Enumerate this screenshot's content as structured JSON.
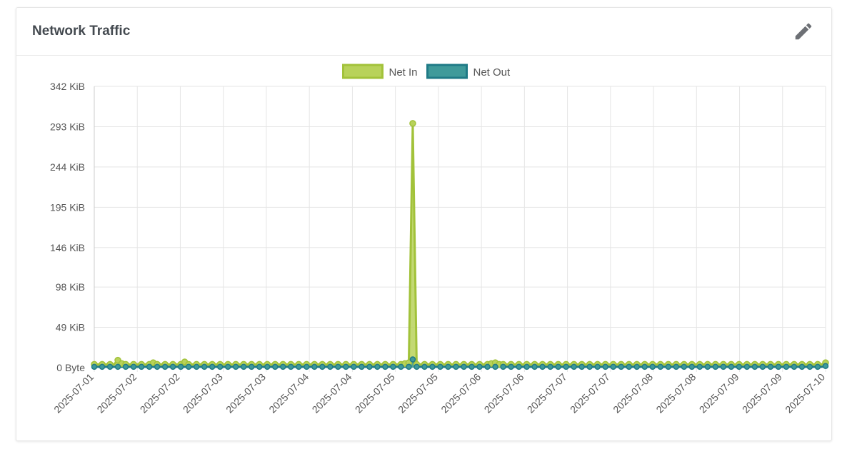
{
  "card": {
    "title": "Network Traffic",
    "edit_icon": "pencil-icon"
  },
  "colors": {
    "net_in_fill": "#b8d25a",
    "net_in_line": "#a2c23a",
    "net_out_fill": "#3f9a9a",
    "net_out_line": "#1f7a86",
    "grid": "#e5e5e5"
  },
  "chart_data": {
    "type": "area",
    "legend_position": "top-center",
    "grid": true,
    "y_unit": "KiB",
    "ylim": [
      0,
      342
    ],
    "y_ticks": [
      {
        "value": 0,
        "label": "0 Byte"
      },
      {
        "value": 49,
        "label": "49 KiB"
      },
      {
        "value": 98,
        "label": "98 KiB"
      },
      {
        "value": 146,
        "label": "146 KiB"
      },
      {
        "value": 195,
        "label": "195 KiB"
      },
      {
        "value": 244,
        "label": "244 KiB"
      },
      {
        "value": 293,
        "label": "293 KiB"
      },
      {
        "value": 342,
        "label": "342 KiB"
      }
    ],
    "x_tick_labels": [
      "2025-07-01",
      "2025-07-02",
      "2025-07-02",
      "2025-07-03",
      "2025-07-03",
      "2025-07-04",
      "2025-07-04",
      "2025-07-05",
      "2025-07-05",
      "2025-07-06",
      "2025-07-06",
      "2025-07-07",
      "2025-07-07",
      "2025-07-08",
      "2025-07-08",
      "2025-07-09",
      "2025-07-09",
      "2025-07-10"
    ],
    "series": [
      {
        "name": "Net In",
        "values": [
          4,
          4,
          4,
          4,
          4,
          4,
          9,
          5,
          4,
          4,
          4,
          4,
          4,
          4,
          4,
          6,
          4,
          4,
          4,
          4,
          4,
          4,
          4,
          7,
          4,
          4,
          4,
          4,
          4,
          4,
          4,
          4,
          4,
          4,
          4,
          4,
          4,
          4,
          4,
          4,
          4,
          4,
          4,
          4,
          4,
          4,
          4,
          4,
          4,
          4,
          4,
          4,
          4,
          4,
          4,
          4,
          4,
          4,
          4,
          4,
          4,
          4,
          4,
          4,
          4,
          4,
          4,
          4,
          4,
          4,
          4,
          4,
          4,
          4,
          4,
          4,
          4,
          4,
          4,
          5,
          6,
          297,
          4,
          4,
          4,
          4,
          4,
          4,
          4,
          4,
          4,
          4,
          4,
          4,
          4,
          4,
          4,
          4,
          4,
          4,
          4,
          5,
          6,
          4,
          4,
          4,
          4,
          4,
          4,
          4,
          4,
          4,
          4,
          4,
          4,
          4,
          4,
          4,
          4,
          4,
          4,
          4,
          4,
          4,
          4,
          4,
          4,
          4,
          4,
          4,
          4,
          4,
          4,
          4,
          4,
          4,
          4,
          4,
          4,
          4,
          4,
          4,
          4,
          4,
          4,
          4,
          4,
          4,
          4,
          4,
          4,
          4,
          4,
          4,
          4,
          4,
          4,
          4,
          4,
          4,
          4,
          4,
          4,
          4,
          4,
          4,
          4,
          4,
          4,
          4,
          4,
          4,
          4,
          4,
          4,
          4,
          4,
          4,
          4,
          4,
          4,
          4,
          4,
          4,
          4,
          4,
          6
        ]
      },
      {
        "name": "Net Out",
        "values": [
          1,
          1,
          1,
          1,
          1,
          1,
          1,
          1,
          1,
          1,
          1,
          1,
          1,
          1,
          1,
          1,
          1,
          1,
          1,
          1,
          1,
          1,
          1,
          1,
          1,
          1,
          1,
          1,
          1,
          1,
          1,
          1,
          1,
          1,
          1,
          1,
          1,
          1,
          1,
          1,
          1,
          1,
          1,
          1,
          1,
          1,
          1,
          1,
          1,
          1,
          1,
          1,
          1,
          1,
          1,
          1,
          1,
          1,
          1,
          1,
          1,
          1,
          1,
          1,
          1,
          1,
          1,
          1,
          1,
          1,
          1,
          1,
          1,
          1,
          1,
          1,
          1,
          1,
          1,
          1,
          1,
          10,
          1,
          1,
          1,
          1,
          1,
          1,
          1,
          1,
          1,
          1,
          1,
          1,
          1,
          1,
          1,
          1,
          1,
          1,
          1,
          1,
          1,
          1,
          1,
          1,
          1,
          1,
          1,
          1,
          1,
          1,
          1,
          1,
          1,
          1,
          1,
          1,
          1,
          1,
          1,
          1,
          1,
          1,
          1,
          1,
          1,
          1,
          1,
          1,
          1,
          1,
          1,
          1,
          1,
          1,
          1,
          1,
          1,
          1,
          1,
          1,
          1,
          1,
          1,
          1,
          1,
          1,
          1,
          1,
          1,
          1,
          1,
          1,
          1,
          1,
          1,
          1,
          1,
          1,
          1,
          1,
          1,
          1,
          1,
          1,
          1,
          1,
          1,
          1,
          1,
          1,
          1,
          1,
          1,
          1,
          1,
          1,
          1,
          1,
          1,
          1,
          1,
          1,
          1,
          1,
          2
        ]
      }
    ]
  }
}
